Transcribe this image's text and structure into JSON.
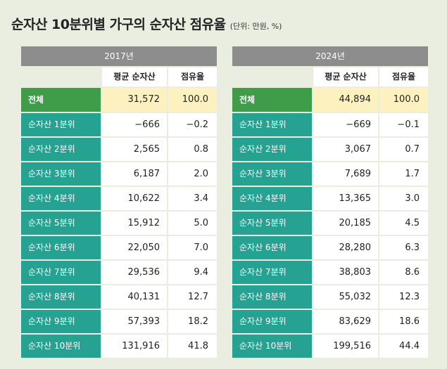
{
  "title": {
    "main": "순자산 10분위별 가구의 순자산 점유율",
    "unit": "(단위: 만원, %)"
  },
  "tables": [
    {
      "year": "2017년",
      "col1": "평균 순자산",
      "col2": "점유율",
      "rows": [
        {
          "label": "전체",
          "avg": "31,572",
          "share": "100.0"
        },
        {
          "label": "순자산 1분위",
          "avg": "−666",
          "share": "−0.2"
        },
        {
          "label": "순자산 2분위",
          "avg": "2,565",
          "share": "0.8"
        },
        {
          "label": "순자산 3분위",
          "avg": "6,187",
          "share": "2.0"
        },
        {
          "label": "순자산 4분위",
          "avg": "10,622",
          "share": "3.4"
        },
        {
          "label": "순자산 5분위",
          "avg": "15,912",
          "share": "5.0"
        },
        {
          "label": "순자산 6분위",
          "avg": "22,050",
          "share": "7.0"
        },
        {
          "label": "순자산 7분위",
          "avg": "29,536",
          "share": "9.4"
        },
        {
          "label": "순자산 8분위",
          "avg": "40,131",
          "share": "12.7"
        },
        {
          "label": "순자산 9분위",
          "avg": "57,393",
          "share": "18.2"
        },
        {
          "label": "순자산 10분위",
          "avg": "131,916",
          "share": "41.8"
        }
      ]
    },
    {
      "year": "2024년",
      "col1": "평균 순자산",
      "col2": "점유율",
      "rows": [
        {
          "label": "전체",
          "avg": "44,894",
          "share": "100.0"
        },
        {
          "label": "순자산 1분위",
          "avg": "−669",
          "share": "−0.1"
        },
        {
          "label": "순자산 2분위",
          "avg": "3,067",
          "share": "0.7"
        },
        {
          "label": "순자산 3분위",
          "avg": "7,689",
          "share": "1.7"
        },
        {
          "label": "순자산 4분위",
          "avg": "13,365",
          "share": "3.0"
        },
        {
          "label": "순자산 5분위",
          "avg": "20,185",
          "share": "4.5"
        },
        {
          "label": "순자산 6분위",
          "avg": "28,280",
          "share": "6.3"
        },
        {
          "label": "순자산 7분위",
          "avg": "38,803",
          "share": "8.6"
        },
        {
          "label": "순자산 8분위",
          "avg": "55,032",
          "share": "12.3"
        },
        {
          "label": "순자산 9분위",
          "avg": "83,629",
          "share": "18.6"
        },
        {
          "label": "순자산 10분위",
          "avg": "199,516",
          "share": "44.4"
        }
      ]
    }
  ]
}
